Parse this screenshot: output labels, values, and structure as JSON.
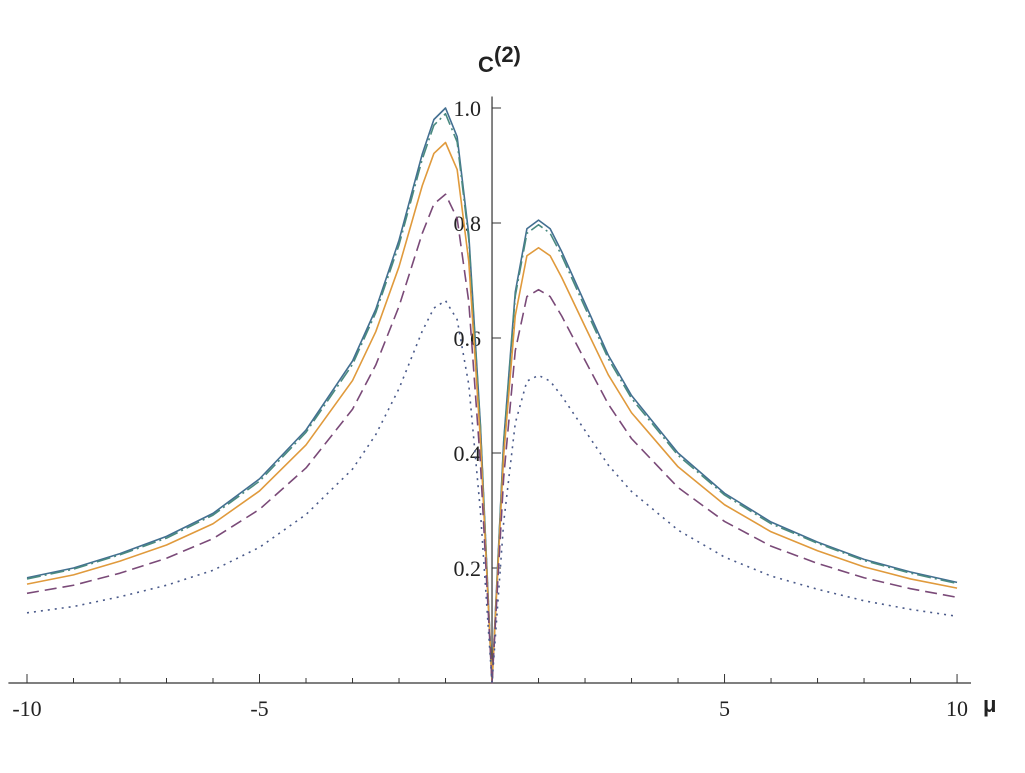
{
  "chart_data": {
    "type": "line",
    "ylabel": "C",
    "ylabel_sup": "(2)",
    "xlabel": "μ",
    "x": [
      -10,
      -9,
      -8,
      -7,
      -6,
      -5,
      -4,
      -3,
      -2.5,
      -2,
      -1.5,
      -1.25,
      -1,
      -0.75,
      -0.5,
      -0.25,
      0,
      0.25,
      0.5,
      0.75,
      1,
      1.25,
      1.5,
      2,
      2.5,
      3,
      4,
      5,
      6,
      7,
      8,
      9,
      10
    ],
    "series": [
      {
        "color": "#436f91",
        "dash": "solid",
        "values": [
          0.183,
          0.2,
          0.225,
          0.255,
          0.295,
          0.355,
          0.44,
          0.56,
          0.65,
          0.77,
          0.92,
          0.98,
          1.0,
          0.95,
          0.78,
          0.45,
          0,
          0.42,
          0.68,
          0.79,
          0.805,
          0.79,
          0.75,
          0.66,
          0.57,
          0.5,
          0.4,
          0.33,
          0.28,
          0.245,
          0.215,
          0.193,
          0.175
        ]
      },
      {
        "color": "#4a8a80",
        "dash": "dashdot",
        "values": [
          0.181,
          0.198,
          0.223,
          0.252,
          0.292,
          0.351,
          0.436,
          0.554,
          0.644,
          0.762,
          0.911,
          0.97,
          0.99,
          0.941,
          0.772,
          0.446,
          0,
          0.416,
          0.673,
          0.782,
          0.797,
          0.782,
          0.743,
          0.653,
          0.564,
          0.495,
          0.396,
          0.327,
          0.277,
          0.243,
          0.213,
          0.191,
          0.173
        ]
      },
      {
        "color": "#e09a3c",
        "dash": "solid",
        "values": [
          0.172,
          0.188,
          0.212,
          0.24,
          0.277,
          0.334,
          0.414,
          0.526,
          0.611,
          0.724,
          0.865,
          0.921,
          0.94,
          0.893,
          0.733,
          0.423,
          0,
          0.395,
          0.639,
          0.743,
          0.757,
          0.743,
          0.705,
          0.62,
          0.536,
          0.47,
          0.376,
          0.31,
          0.263,
          0.23,
          0.202,
          0.181,
          0.165
        ]
      },
      {
        "color": "#7a4a78",
        "dash": "dashed",
        "values": [
          0.156,
          0.17,
          0.191,
          0.217,
          0.251,
          0.302,
          0.374,
          0.476,
          0.553,
          0.655,
          0.782,
          0.833,
          0.85,
          0.808,
          0.663,
          0.383,
          0,
          0.357,
          0.578,
          0.672,
          0.684,
          0.672,
          0.638,
          0.561,
          0.485,
          0.425,
          0.34,
          0.281,
          0.238,
          0.208,
          0.183,
          0.164,
          0.149
        ]
      },
      {
        "color": "#4a5a8a",
        "dash": "dotted",
        "values": [
          0.122,
          0.133,
          0.15,
          0.17,
          0.196,
          0.236,
          0.293,
          0.372,
          0.432,
          0.512,
          0.612,
          0.652,
          0.665,
          0.632,
          0.519,
          0.299,
          0,
          0.279,
          0.452,
          0.525,
          0.535,
          0.525,
          0.499,
          0.439,
          0.379,
          0.333,
          0.266,
          0.219,
          0.186,
          0.163,
          0.143,
          0.128,
          0.116
        ]
      }
    ],
    "xlim": [
      -10.4,
      10.3
    ],
    "ylim": [
      0,
      1.02
    ],
    "xticks": [
      -10,
      -5,
      5,
      10
    ],
    "xminorticks": [
      -9,
      -8,
      -7,
      -6,
      -4,
      -3,
      -2,
      -1,
      1,
      2,
      3,
      4,
      6,
      7,
      8,
      9
    ],
    "yticks": [
      0.2,
      0.4,
      0.6,
      0.8,
      {
        "value": 1,
        "label": "1.0"
      }
    ],
    "grid": false
  }
}
